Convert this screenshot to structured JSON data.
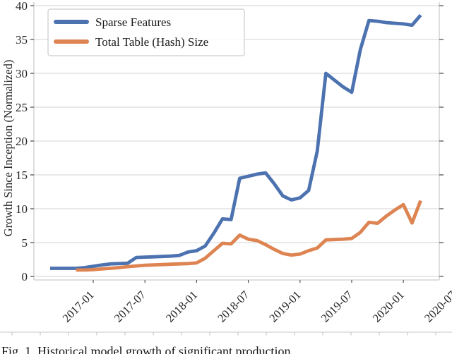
{
  "figure": {
    "caption": "Fig. 1.  Historical model growth of significant production"
  },
  "style": {
    "background": "#ffffff",
    "grid_color": "#dcdcdc",
    "spine_color": "#cccccc",
    "tick_color": "#555555",
    "text_color": "#262626",
    "legend_border": "#cccccc",
    "legend_bg": "#ffffff",
    "ruler_color": "#c9c9c9",
    "blue": "#4C72B0",
    "orange": "#DD8452"
  },
  "chart_data": {
    "type": "line",
    "title": "",
    "xlabel": "",
    "ylabel": "Growth Since Inception (Normalized)",
    "ylim": [
      0,
      40
    ],
    "yticks": [
      0,
      5,
      10,
      15,
      20,
      25,
      30,
      35,
      40
    ],
    "xtick_labels": [
      "2017-01",
      "2017-07",
      "2018-01",
      "2018-07",
      "2019-01",
      "2019-07",
      "2020-01",
      "2020-07"
    ],
    "grid": "horizontal",
    "legend_position": "upper-left",
    "line_width": 4.8,
    "series": [
      {
        "name": "Sparse Features",
        "color": "#4C72B0",
        "points": [
          [
            "2016-08",
            1.2
          ],
          [
            "2016-09",
            1.2
          ],
          [
            "2016-10",
            1.2
          ],
          [
            "2016-11",
            1.2
          ],
          [
            "2016-12",
            1.3
          ],
          [
            "2017-01",
            1.5
          ],
          [
            "2017-02",
            1.7
          ],
          [
            "2017-03",
            1.85
          ],
          [
            "2017-04",
            1.9
          ],
          [
            "2017-05",
            1.95
          ],
          [
            "2017-06",
            2.8
          ],
          [
            "2017-07",
            2.85
          ],
          [
            "2017-08",
            2.9
          ],
          [
            "2017-09",
            2.95
          ],
          [
            "2017-10",
            3.0
          ],
          [
            "2017-11",
            3.1
          ],
          [
            "2017-12",
            3.6
          ],
          [
            "2018-01",
            3.8
          ],
          [
            "2018-02",
            4.5
          ],
          [
            "2018-03",
            6.4
          ],
          [
            "2018-04",
            8.5
          ],
          [
            "2018-05",
            8.4
          ],
          [
            "2018-06",
            14.5
          ],
          [
            "2018-07",
            14.8
          ],
          [
            "2018-08",
            15.1
          ],
          [
            "2018-09",
            15.3
          ],
          [
            "2018-10",
            13.7
          ],
          [
            "2018-11",
            11.9
          ],
          [
            "2018-12",
            11.3
          ],
          [
            "2019-01",
            11.6
          ],
          [
            "2019-02",
            12.7
          ],
          [
            "2019-03",
            18.5
          ],
          [
            "2019-04",
            30.0
          ],
          [
            "2019-05",
            29.0
          ],
          [
            "2019-06",
            28.0
          ],
          [
            "2019-07",
            27.2
          ],
          [
            "2019-08",
            33.5
          ],
          [
            "2019-09",
            37.8
          ],
          [
            "2019-10",
            37.7
          ],
          [
            "2019-11",
            37.5
          ],
          [
            "2019-12",
            37.4
          ],
          [
            "2020-01",
            37.3
          ],
          [
            "2020-02",
            37.1
          ],
          [
            "2020-03",
            38.6
          ]
        ]
      },
      {
        "name": "Total Table (Hash) Size",
        "color": "#DD8452",
        "points": [
          [
            "2016-11",
            0.95
          ],
          [
            "2016-12",
            0.95
          ],
          [
            "2017-01",
            1.0
          ],
          [
            "2017-02",
            1.1
          ],
          [
            "2017-03",
            1.2
          ],
          [
            "2017-04",
            1.3
          ],
          [
            "2017-05",
            1.45
          ],
          [
            "2017-06",
            1.55
          ],
          [
            "2017-07",
            1.65
          ],
          [
            "2017-08",
            1.7
          ],
          [
            "2017-09",
            1.75
          ],
          [
            "2017-10",
            1.8
          ],
          [
            "2017-11",
            1.85
          ],
          [
            "2017-12",
            1.9
          ],
          [
            "2018-01",
            2.0
          ],
          [
            "2018-02",
            2.7
          ],
          [
            "2018-03",
            3.8
          ],
          [
            "2018-04",
            4.9
          ],
          [
            "2018-05",
            4.8
          ],
          [
            "2018-06",
            6.1
          ],
          [
            "2018-07",
            5.5
          ],
          [
            "2018-08",
            5.3
          ],
          [
            "2018-09",
            4.7
          ],
          [
            "2018-10",
            4.0
          ],
          [
            "2018-11",
            3.4
          ],
          [
            "2018-12",
            3.15
          ],
          [
            "2019-01",
            3.3
          ],
          [
            "2019-02",
            3.8
          ],
          [
            "2019-03",
            4.2
          ],
          [
            "2019-04",
            5.4
          ],
          [
            "2019-05",
            5.45
          ],
          [
            "2019-06",
            5.5
          ],
          [
            "2019-07",
            5.6
          ],
          [
            "2019-08",
            6.5
          ],
          [
            "2019-09",
            8.0
          ],
          [
            "2019-10",
            7.85
          ],
          [
            "2019-11",
            8.9
          ],
          [
            "2019-12",
            9.8
          ],
          [
            "2020-01",
            10.6
          ],
          [
            "2020-02",
            7.9
          ],
          [
            "2020-03",
            11.2
          ]
        ]
      }
    ]
  }
}
